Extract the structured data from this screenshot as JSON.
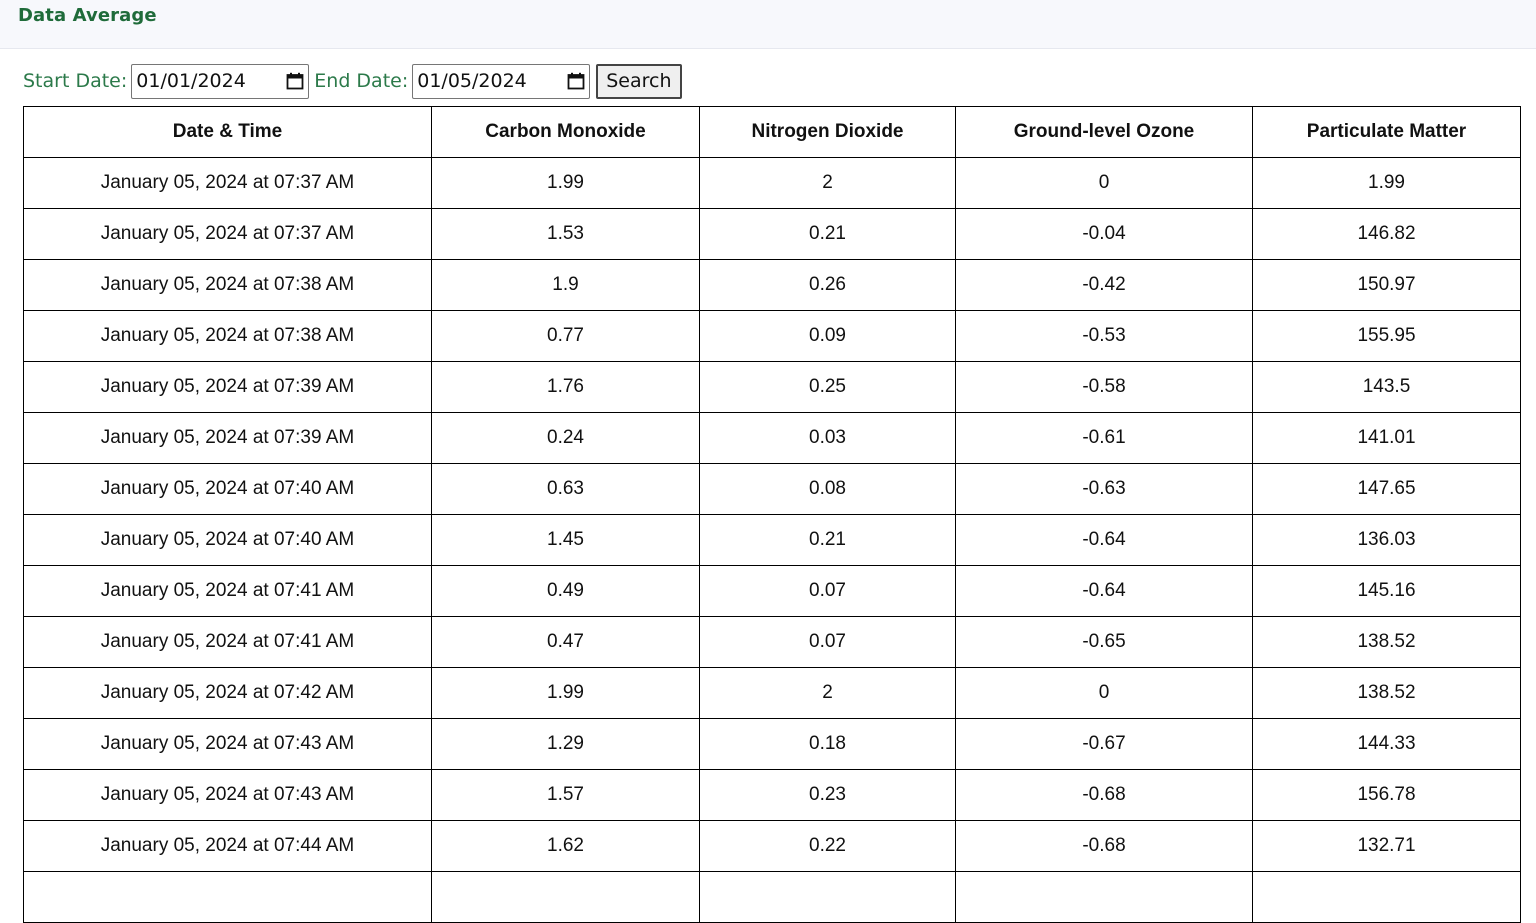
{
  "header": {
    "title": "Data Average"
  },
  "filters": {
    "start_label": "Start Date:",
    "start_value": "01/01/2024",
    "end_label": "End Date:",
    "end_value": "01/05/2024",
    "search_label": "Search"
  },
  "table": {
    "columns": [
      "Date & Time",
      "Carbon Monoxide",
      "Nitrogen Dioxide",
      "Ground-level Ozone",
      "Particulate Matter"
    ],
    "rows": [
      [
        "January 05, 2024 at 07:37 AM",
        "1.99",
        "2",
        "0",
        "1.99"
      ],
      [
        "January 05, 2024 at 07:37 AM",
        "1.53",
        "0.21",
        "-0.04",
        "146.82"
      ],
      [
        "January 05, 2024 at 07:38 AM",
        "1.9",
        "0.26",
        "-0.42",
        "150.97"
      ],
      [
        "January 05, 2024 at 07:38 AM",
        "0.77",
        "0.09",
        "-0.53",
        "155.95"
      ],
      [
        "January 05, 2024 at 07:39 AM",
        "1.76",
        "0.25",
        "-0.58",
        "143.5"
      ],
      [
        "January 05, 2024 at 07:39 AM",
        "0.24",
        "0.03",
        "-0.61",
        "141.01"
      ],
      [
        "January 05, 2024 at 07:40 AM",
        "0.63",
        "0.08",
        "-0.63",
        "147.65"
      ],
      [
        "January 05, 2024 at 07:40 AM",
        "1.45",
        "0.21",
        "-0.64",
        "136.03"
      ],
      [
        "January 05, 2024 at 07:41 AM",
        "0.49",
        "0.07",
        "-0.64",
        "145.16"
      ],
      [
        "January 05, 2024 at 07:41 AM",
        "0.47",
        "0.07",
        "-0.65",
        "138.52"
      ],
      [
        "January 05, 2024 at 07:42 AM",
        "1.99",
        "2",
        "0",
        "138.52"
      ],
      [
        "January 05, 2024 at 07:43 AM",
        "1.29",
        "0.18",
        "-0.67",
        "144.33"
      ],
      [
        "January 05, 2024 at 07:43 AM",
        "1.57",
        "0.23",
        "-0.68",
        "156.78"
      ],
      [
        "January 05, 2024 at 07:44 AM",
        "1.62",
        "0.22",
        "-0.68",
        "132.71"
      ],
      [
        "",
        "",
        "",
        "",
        ""
      ]
    ]
  },
  "icons": {
    "calendar": "calendar-icon"
  },
  "colors": {
    "title": "#1f6b3a",
    "label": "#2c7a4a",
    "topbar_bg": "#f7f8fc"
  }
}
